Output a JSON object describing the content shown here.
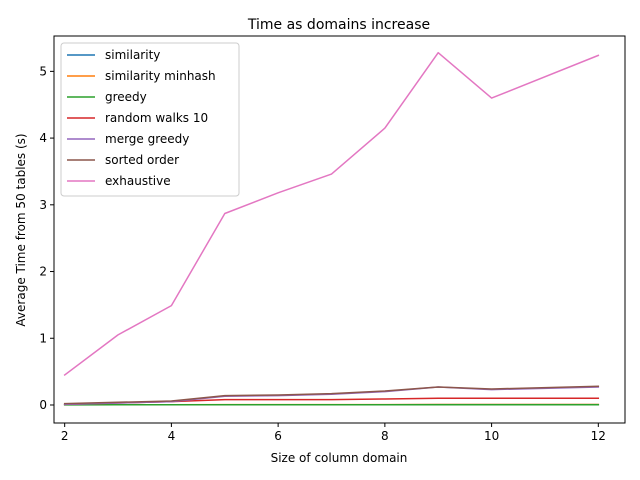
{
  "chart_data": {
    "type": "line",
    "title": "Time as domains increase",
    "xlabel": "Size of column domain",
    "ylabel": "Average Time from 50 tables (s)",
    "x": [
      2,
      3,
      4,
      5,
      6,
      7,
      8,
      9,
      10,
      12
    ],
    "xlim": [
      1.8,
      12.5
    ],
    "ylim": [
      -0.27,
      5.53
    ],
    "xticks": [
      2,
      4,
      6,
      8,
      10,
      12
    ],
    "yticks": [
      0,
      1,
      2,
      3,
      4,
      5
    ],
    "grid": false,
    "legend_position": "upper-left",
    "series": [
      {
        "name": "similarity",
        "color": "#1f77b4",
        "values": [
          0.003,
          0.004,
          0.004,
          0.005,
          0.005,
          0.005,
          0.005,
          0.006,
          0.006,
          0.006
        ]
      },
      {
        "name": "similarity minhash",
        "color": "#ff7f0e",
        "values": [
          0.004,
          0.005,
          0.005,
          0.006,
          0.006,
          0.006,
          0.006,
          0.007,
          0.007,
          0.007
        ]
      },
      {
        "name": "greedy",
        "color": "#2ca02c",
        "values": [
          0.002,
          0.003,
          0.003,
          0.003,
          0.003,
          0.003,
          0.003,
          0.004,
          0.004,
          0.004
        ]
      },
      {
        "name": "random walks 10",
        "color": "#d62728",
        "values": [
          0.01,
          0.03,
          0.05,
          0.08,
          0.08,
          0.08,
          0.09,
          0.1,
          0.1,
          0.1
        ]
      },
      {
        "name": "merge greedy",
        "color": "#9467bd",
        "values": [
          0.01,
          0.03,
          0.05,
          0.13,
          0.14,
          0.16,
          0.2,
          0.27,
          0.23,
          0.27
        ]
      },
      {
        "name": "sorted order",
        "color": "#8c564b",
        "values": [
          0.02,
          0.04,
          0.06,
          0.14,
          0.15,
          0.17,
          0.21,
          0.27,
          0.24,
          0.28
        ]
      },
      {
        "name": "exhaustive",
        "color": "#e377c2",
        "values": [
          0.45,
          1.05,
          1.49,
          2.87,
          3.18,
          3.46,
          4.15,
          5.28,
          4.6,
          5.24
        ]
      }
    ]
  }
}
